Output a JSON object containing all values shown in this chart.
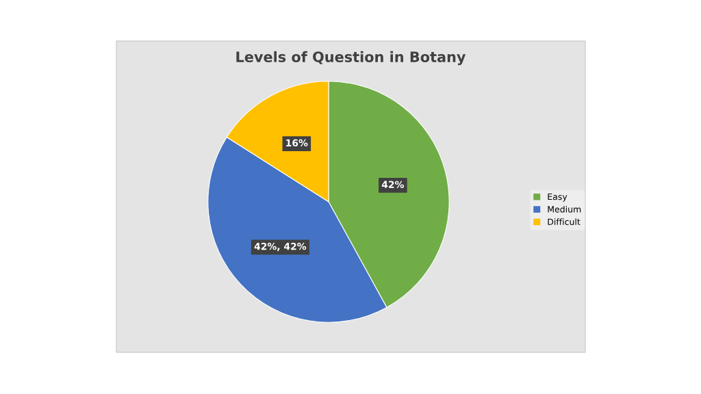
{
  "chart_data": {
    "type": "pie",
    "title": "Levels of Question in Botany",
    "categories": [
      "Easy",
      "Medium",
      "Difficult"
    ],
    "values": [
      42,
      42,
      16
    ],
    "colors": [
      "#70ad47",
      "#4472c4",
      "#ffc000"
    ],
    "value_labels": [
      "42%",
      "42%, 42%",
      "16%"
    ],
    "legend": "right"
  }
}
